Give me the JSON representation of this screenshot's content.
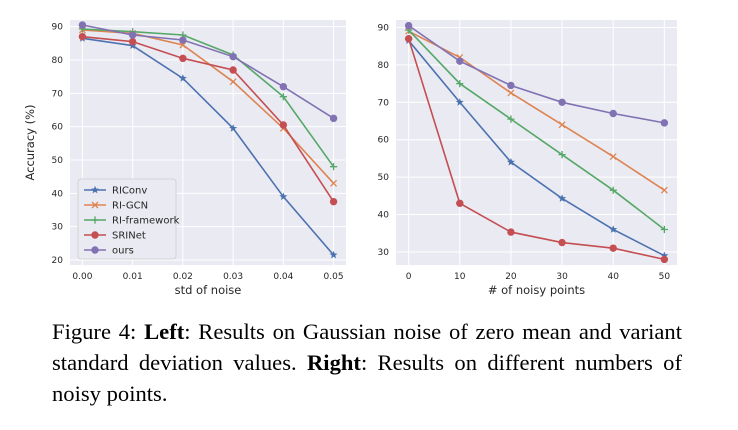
{
  "chart_data": [
    {
      "type": "line",
      "x": [
        0.0,
        0.01,
        0.02,
        0.03,
        0.04,
        0.05
      ],
      "x_tick_labels": [
        "0.00",
        "0.01",
        "0.02",
        "0.03",
        "0.04",
        "0.05"
      ],
      "y_ticks": [
        20,
        30,
        40,
        50,
        60,
        70,
        80,
        90
      ],
      "xlabel": "std of noise",
      "ylabel": "Accuracy (%)",
      "ylim": [
        18.5,
        92
      ],
      "grid": true,
      "legend_position": "lower-left",
      "series": [
        {
          "name": "RIConv",
          "color": "#4c72b0",
          "marker": "star",
          "values": [
            86.5,
            84.3,
            74.5,
            59.5,
            39.0,
            21.5
          ]
        },
        {
          "name": "RI-GCN",
          "color": "#dd8452",
          "marker": "x",
          "values": [
            89.0,
            88.0,
            84.5,
            73.5,
            59.5,
            43.0
          ]
        },
        {
          "name": "RI-framework",
          "color": "#55a868",
          "marker": "plus",
          "values": [
            89.3,
            88.5,
            87.5,
            81.5,
            69.0,
            48.0
          ]
        },
        {
          "name": "SRINet",
          "color": "#c44e52",
          "marker": "circle",
          "values": [
            87.0,
            85.5,
            80.5,
            77.0,
            60.5,
            37.5
          ]
        },
        {
          "name": "ours",
          "color": "#8172b3",
          "marker": "circle",
          "values": [
            90.5,
            87.5,
            86.0,
            81.0,
            72.0,
            62.5
          ]
        }
      ]
    },
    {
      "type": "line",
      "x": [
        0,
        10,
        20,
        30,
        40,
        50
      ],
      "x_tick_labels": [
        "0",
        "10",
        "20",
        "30",
        "40",
        "50"
      ],
      "y_ticks": [
        30,
        40,
        50,
        60,
        70,
        80,
        90
      ],
      "xlabel": "# of noisy points",
      "ylabel": "",
      "ylim": [
        26.5,
        92
      ],
      "grid": true,
      "series": [
        {
          "name": "RIConv",
          "color": "#4c72b0",
          "marker": "star",
          "values": [
            86.5,
            70.0,
            54.0,
            44.3,
            36.0,
            29.0
          ]
        },
        {
          "name": "RI-GCN",
          "color": "#dd8452",
          "marker": "x",
          "values": [
            89.0,
            82.0,
            72.5,
            64.0,
            55.5,
            46.5
          ]
        },
        {
          "name": "RI-framework",
          "color": "#55a868",
          "marker": "plus",
          "values": [
            89.3,
            75.0,
            65.5,
            56.0,
            46.5,
            36.0
          ]
        },
        {
          "name": "SRINet",
          "color": "#c44e52",
          "marker": "circle",
          "values": [
            87.0,
            43.0,
            35.3,
            32.5,
            31.0,
            28.0
          ]
        },
        {
          "name": "ours",
          "color": "#8172b3",
          "marker": "circle",
          "values": [
            90.5,
            81.0,
            74.5,
            70.0,
            67.0,
            64.5
          ]
        }
      ]
    }
  ],
  "caption": {
    "figure_label": "Figure 4:",
    "left_label": "Left",
    "left_text": ": Results on Gaussian noise of zero mean and variant standard deviation values.",
    "right_label": "Right",
    "right_text": ": Results on different numbers of noisy points."
  }
}
